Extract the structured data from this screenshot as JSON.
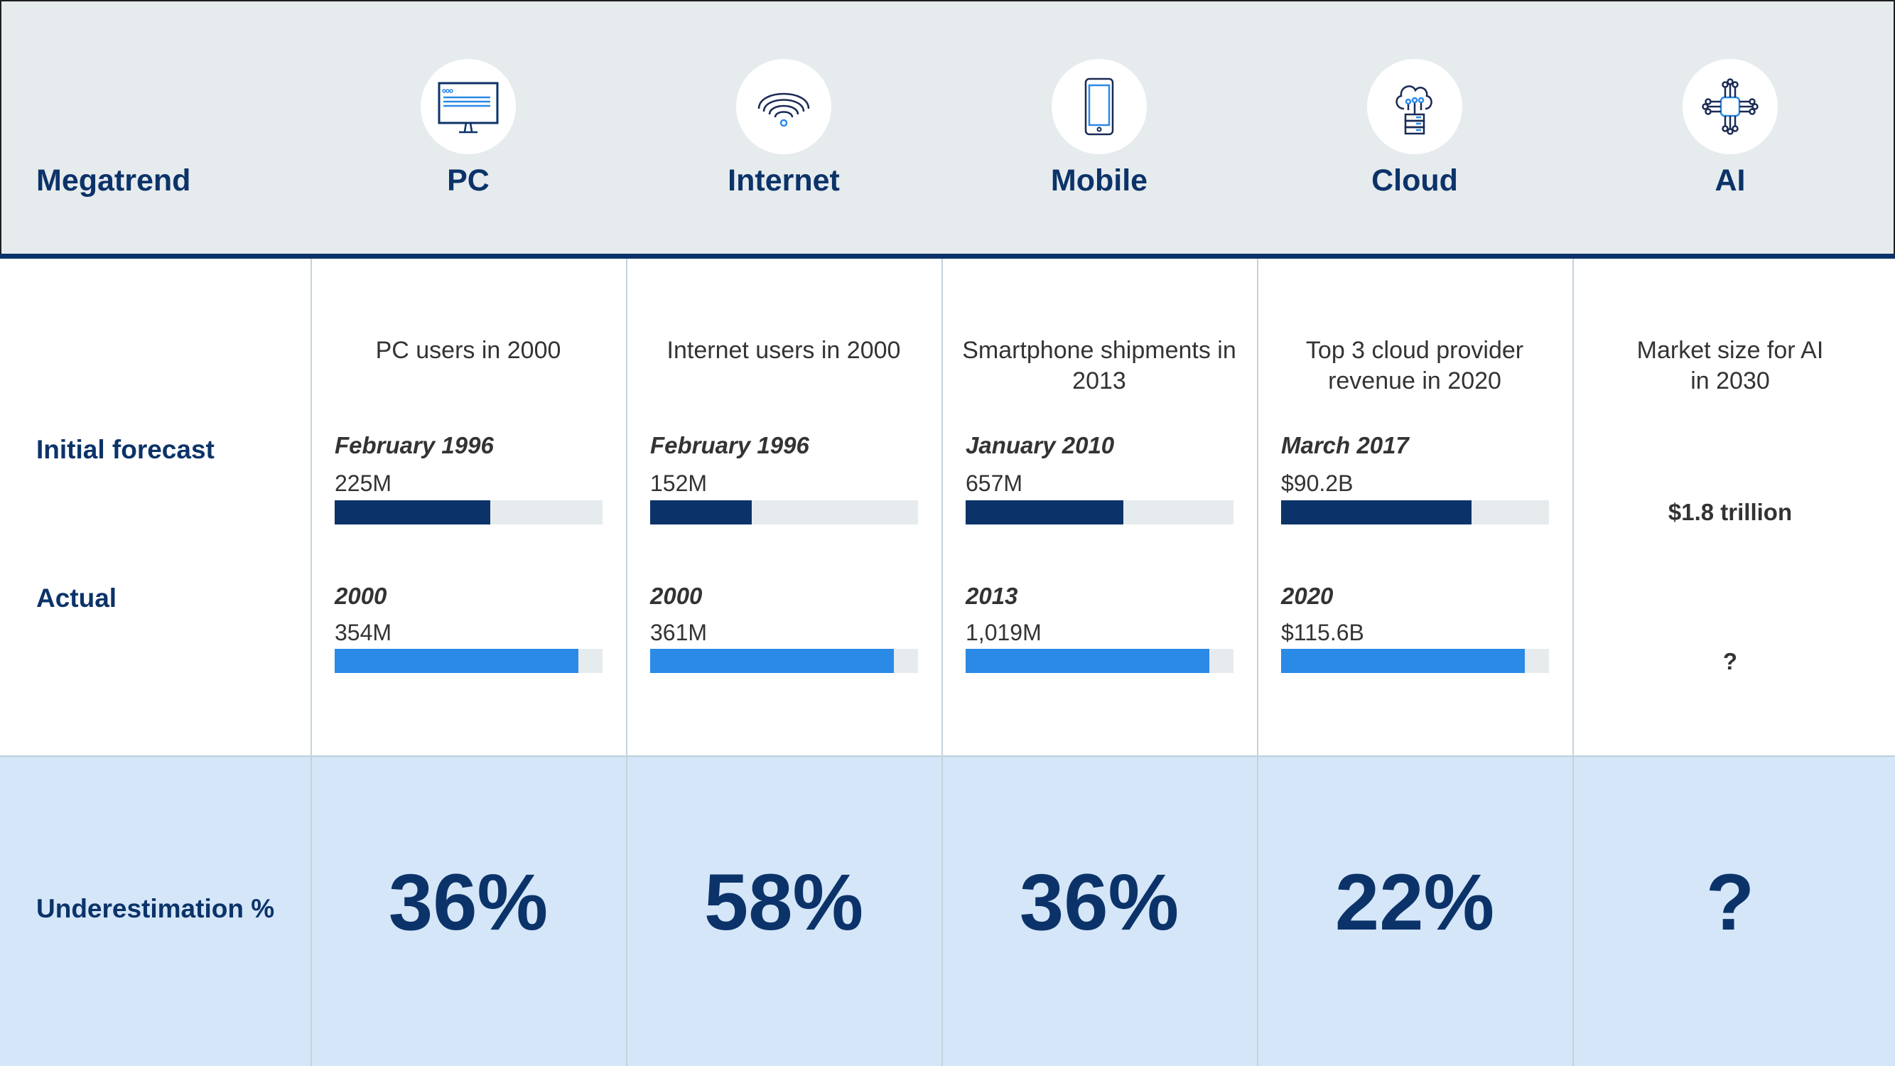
{
  "header": {
    "label": "Megatrend"
  },
  "row_labels": {
    "forecast": "Initial forecast",
    "actual": "Actual",
    "under": "Underestimation %"
  },
  "colors": {
    "navy": "#0c3369",
    "blue": "#2b8ae6",
    "track": "#e6ebee",
    "band": "#d4e6f8"
  },
  "columns": [
    {
      "name": "PC",
      "icon": "monitor-icon",
      "subtitle": "PC users in 2000",
      "forecast_date": "February 1996",
      "forecast_value": "225M",
      "forecast_fill": 0.58,
      "actual_date": "2000",
      "actual_value": "354M",
      "actual_fill": 0.91,
      "under": "36%"
    },
    {
      "name": "Internet",
      "icon": "wifi-icon",
      "subtitle": "Internet users in 2000",
      "forecast_date": "February 1996",
      "forecast_value": "152M",
      "forecast_fill": 0.38,
      "actual_date": "2000",
      "actual_value": "361M",
      "actual_fill": 0.91,
      "under": "58%"
    },
    {
      "name": "Mobile",
      "icon": "smartphone-icon",
      "subtitle": "Smartphone shipments in 2013",
      "forecast_date": "January 2010",
      "forecast_value": "657M",
      "forecast_fill": 0.59,
      "actual_date": "2013",
      "actual_value": "1,019M",
      "actual_fill": 0.91,
      "under": "36%"
    },
    {
      "name": "Cloud",
      "icon": "cloud-server-icon",
      "subtitle": "Top 3 cloud provider revenue in 2020",
      "forecast_date": "March 2017",
      "forecast_value": "$90.2B",
      "forecast_fill": 0.71,
      "actual_date": "2020",
      "actual_value": "$115.6B",
      "actual_fill": 0.91,
      "under": "22%"
    }
  ],
  "ai": {
    "name": "AI",
    "icon": "ai-chip-icon",
    "subtitle": "Market size for AI in 2030",
    "forecast_value": "$1.8 trillion",
    "actual_value": "?",
    "under": "?"
  }
}
